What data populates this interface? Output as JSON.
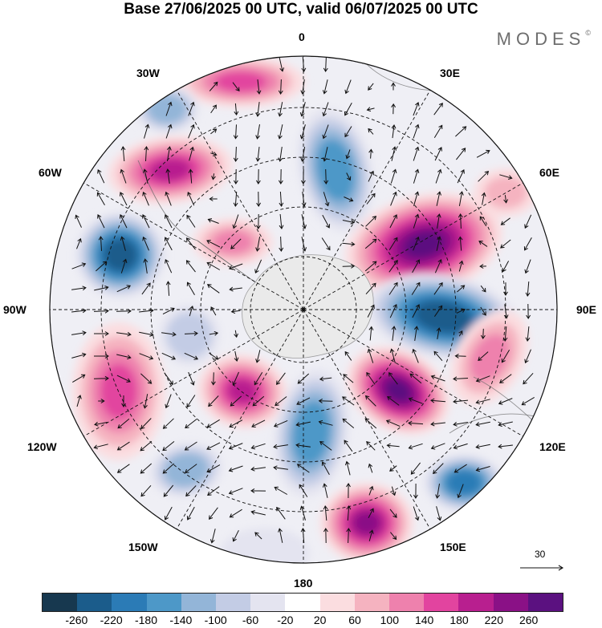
{
  "title": "Base 27/06/2025 00 UTC, valid 06/07/2025 00 UTC",
  "brand": {
    "name": "MODES",
    "mark": "©"
  },
  "longitude_labels": {
    "lon_0": "0",
    "lon_30e": "30E",
    "lon_60e": "60E",
    "lon_90e": "90E",
    "lon_120e": "120E",
    "lon_150e": "150E",
    "lon_180": "180",
    "lon_150w": "150W",
    "lon_120w": "120W",
    "lon_90w": "90W",
    "lon_60w": "60W",
    "lon_30w": "30W"
  },
  "reference_vector": {
    "label": "30"
  },
  "colorbar": {
    "colors": [
      "#17384f",
      "#1b5c8b",
      "#2b7bb6",
      "#4d98c8",
      "#93b5d8",
      "#c3cce5",
      "#e4e4f0",
      "#ffffff",
      "#fbdde0",
      "#f5b3c0",
      "#ee81ad",
      "#e2449f",
      "#b81f8f",
      "#8a1186",
      "#5b1180"
    ],
    "ticks": [
      "-260",
      "-220",
      "-180",
      "-140",
      "-100",
      "-60",
      "-20",
      "20",
      "60",
      "100",
      "140",
      "180",
      "220",
      "260"
    ]
  },
  "anomalies": [
    {
      "id": "a01",
      "sign": "positive",
      "value": 260
    },
    {
      "id": "a02",
      "sign": "negative",
      "value": -260
    },
    {
      "id": "a03",
      "sign": "positive",
      "value": 260
    },
    {
      "id": "a04",
      "sign": "negative",
      "value": -220
    },
    {
      "id": "a05",
      "sign": "positive",
      "value": 220
    },
    {
      "id": "a06",
      "sign": "negative",
      "value": -260
    },
    {
      "id": "a07",
      "sign": "negative",
      "value": -180
    },
    {
      "id": "a08",
      "sign": "positive",
      "value": 180
    },
    {
      "id": "a09",
      "sign": "negative",
      "value": -180
    },
    {
      "id": "a10",
      "sign": "positive",
      "value": 140
    },
    {
      "id": "a11",
      "sign": "negative",
      "value": -140
    },
    {
      "id": "a12",
      "sign": "positive",
      "value": 180
    },
    {
      "id": "a13",
      "sign": "positive",
      "value": 140
    },
    {
      "id": "a14",
      "sign": "negative",
      "value": -100
    },
    {
      "id": "a15",
      "sign": "negative",
      "value": -140
    },
    {
      "id": "a16",
      "sign": "positive",
      "value": 100
    },
    {
      "id": "a17",
      "sign": "positive",
      "value": 100
    },
    {
      "id": "a18",
      "sign": "negative",
      "value": -60
    },
    {
      "id": "a19",
      "sign": "positive",
      "value": 60
    }
  ]
}
